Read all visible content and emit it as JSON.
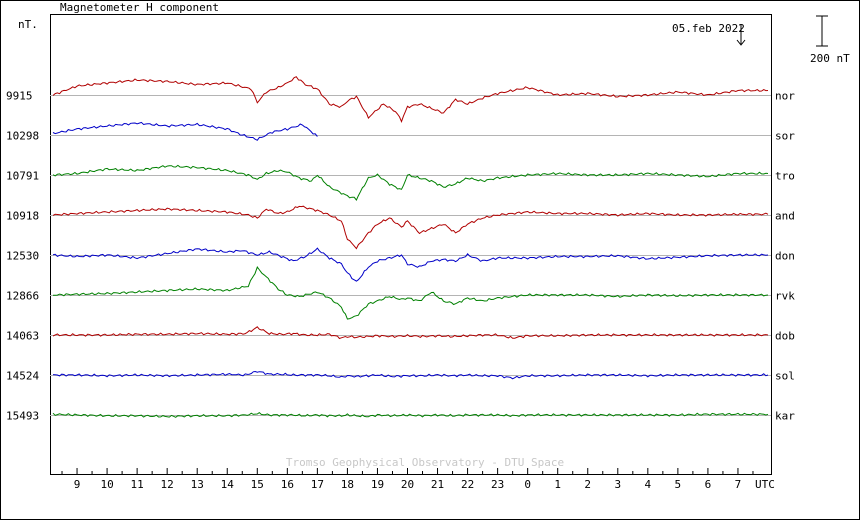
{
  "chart_data": {
    "type": "line",
    "title": "Magnetometer H component",
    "ylabel": "nT.",
    "date_label": "05.feb 2022",
    "scale_label": "200 nT",
    "xlabel": "UTC",
    "credit": "Tromso Geophysical Observatory - DTU Space",
    "x_ticks": [
      "9",
      "10",
      "11",
      "12",
      "13",
      "14",
      "15",
      "16",
      "17",
      "18",
      "19",
      "20",
      "21",
      "22",
      "23",
      "0",
      "1",
      "2",
      "3",
      "4",
      "5",
      "6",
      "7"
    ],
    "x_hours": [
      9,
      10,
      11,
      12,
      13,
      14,
      15,
      16,
      17,
      18,
      19,
      20,
      21,
      22,
      23,
      24,
      25,
      26,
      27,
      28,
      29,
      30,
      31
    ],
    "x_range_hours": [
      8.1,
      32.1
    ],
    "scale_bar_nT": 200,
    "baselines": [
      {
        "station": "nor",
        "value": "9915",
        "color": "#b00000"
      },
      {
        "station": "sor",
        "value": "10298",
        "color": "#0000c8"
      },
      {
        "station": "tro",
        "value": "10791",
        "color": "#008000"
      },
      {
        "station": "and",
        "value": "10918",
        "color": "#b00000"
      },
      {
        "station": "don",
        "value": "12530",
        "color": "#0000c8"
      },
      {
        "station": "rvk",
        "value": "12866",
        "color": "#008000"
      },
      {
        "station": "dob",
        "value": "14063",
        "color": "#b00000"
      },
      {
        "station": "sol",
        "value": "14524",
        "color": "#0000c8"
      },
      {
        "station": "kar",
        "value": "15493",
        "color": "#008000"
      }
    ],
    "series": [
      {
        "name": "nor",
        "color": "#b00000",
        "x": [
          8.2,
          9,
          10,
          11,
          12,
          13,
          14,
          14.8,
          15,
          15.3,
          15.7,
          16,
          16.3,
          16.6,
          17,
          17.4,
          17.8,
          18,
          18.3,
          18.7,
          19.2,
          19.6,
          19.8,
          20,
          20.4,
          20.8,
          21.2,
          21.6,
          22,
          22.5,
          23,
          24,
          25,
          26,
          27,
          28,
          29,
          30,
          31,
          32
        ],
        "y": [
          0,
          60,
          80,
          100,
          90,
          70,
          80,
          40,
          -50,
          20,
          50,
          80,
          120,
          70,
          40,
          -60,
          -80,
          -40,
          -10,
          -150,
          -60,
          -110,
          -170,
          -80,
          -60,
          -90,
          -120,
          -30,
          -60,
          -20,
          10,
          50,
          0,
          10,
          -10,
          0,
          20,
          0,
          30,
          30
        ]
      },
      {
        "name": "sor",
        "color": "#0000c8",
        "x": [
          8.2,
          9,
          10,
          11,
          12,
          13,
          14,
          14.5,
          15,
          15.5,
          16,
          16.5,
          17
        ],
        "y": [
          10,
          40,
          60,
          80,
          60,
          70,
          40,
          0,
          -30,
          20,
          40,
          70,
          -10
        ]
      },
      {
        "name": "tro",
        "color": "#008000",
        "x": [
          8.2,
          9,
          10,
          11,
          12,
          13,
          14,
          14.7,
          15,
          15.3,
          15.7,
          16,
          16.4,
          16.8,
          17,
          17.4,
          17.8,
          18,
          18.3,
          18.7,
          19,
          19.4,
          19.8,
          20,
          20.4,
          20.8,
          21.2,
          21.6,
          22,
          22.5,
          23,
          24,
          25,
          26,
          27,
          28,
          29,
          30,
          31,
          32
        ],
        "y": [
          0,
          10,
          40,
          30,
          60,
          50,
          30,
          0,
          -30,
          10,
          30,
          20,
          -20,
          -40,
          0,
          -80,
          -120,
          -140,
          -160,
          -20,
          0,
          -60,
          -100,
          0,
          -20,
          -40,
          -80,
          -60,
          -20,
          -40,
          -20,
          0,
          10,
          0,
          0,
          10,
          0,
          -10,
          10,
          10
        ]
      },
      {
        "name": "and",
        "color": "#b00000",
        "x": [
          8.2,
          9,
          10,
          11,
          12,
          13,
          14,
          14.7,
          15,
          15.3,
          15.7,
          16,
          16.4,
          16.8,
          17,
          17.4,
          17.8,
          18,
          18.3,
          18.7,
          19,
          19.4,
          19.8,
          20,
          20.4,
          20.8,
          21.2,
          21.6,
          22,
          22.5,
          23,
          24,
          25,
          26,
          27,
          28,
          29,
          30,
          31,
          32
        ],
        "y": [
          0,
          10,
          20,
          30,
          40,
          30,
          20,
          0,
          -20,
          40,
          10,
          20,
          60,
          40,
          30,
          0,
          -40,
          -160,
          -220,
          -120,
          -60,
          -20,
          -80,
          -40,
          -120,
          -90,
          -60,
          -120,
          -60,
          -20,
          0,
          20,
          10,
          10,
          0,
          10,
          0,
          0,
          5,
          5
        ]
      },
      {
        "name": "don",
        "color": "#0000c8",
        "x": [
          8.2,
          9,
          10,
          11,
          12,
          13,
          14,
          14.5,
          15,
          15.4,
          15.8,
          16.2,
          16.6,
          17,
          17.4,
          17.8,
          18,
          18.3,
          18.7,
          19,
          19.4,
          19.8,
          20,
          20.4,
          20.8,
          21.2,
          21.6,
          22,
          22.5,
          23,
          24,
          25,
          26,
          27,
          28,
          29,
          30,
          31,
          32
        ],
        "y": [
          0,
          -10,
          0,
          -20,
          10,
          40,
          20,
          30,
          0,
          20,
          -10,
          -40,
          -10,
          40,
          -20,
          -60,
          -120,
          -180,
          -80,
          -40,
          -20,
          0,
          -60,
          -80,
          -40,
          -30,
          -40,
          0,
          -40,
          -20,
          -20,
          -10,
          -10,
          -5,
          -25,
          -15,
          -5,
          0,
          0
        ]
      },
      {
        "name": "rvk",
        "color": "#008000",
        "x": [
          8.2,
          9,
          10,
          11,
          12,
          13,
          14,
          14.7,
          15,
          15.3,
          15.7,
          16,
          16.4,
          16.8,
          17,
          17.4,
          17.8,
          18,
          18.3,
          18.7,
          19,
          19.4,
          19.8,
          20,
          20.4,
          20.8,
          21.2,
          21.6,
          22,
          22.5,
          23,
          24,
          25,
          26,
          27,
          28,
          29,
          30,
          31,
          32
        ],
        "y": [
          0,
          5,
          10,
          20,
          30,
          40,
          30,
          60,
          180,
          120,
          40,
          0,
          -10,
          10,
          20,
          -20,
          -80,
          -160,
          -140,
          -60,
          -40,
          -10,
          -30,
          -20,
          -40,
          20,
          -40,
          -60,
          -20,
          -40,
          -20,
          0,
          0,
          0,
          -10,
          0,
          -5,
          0,
          0,
          0
        ]
      },
      {
        "name": "dob",
        "color": "#b00000",
        "x": [
          8.2,
          9,
          10,
          11,
          12,
          13,
          14,
          14.6,
          15,
          15.4,
          15.8,
          16.2,
          16.6,
          17,
          17.4,
          17.8,
          18,
          18.3,
          18.7,
          19,
          19.5,
          20,
          20.5,
          21,
          21.5,
          22,
          22.5,
          23,
          23.5,
          24,
          25,
          26,
          27,
          28,
          29,
          30,
          31,
          32
        ],
        "y": [
          0,
          0,
          0,
          5,
          5,
          10,
          5,
          10,
          50,
          10,
          5,
          10,
          0,
          0,
          5,
          -20,
          -10,
          -15,
          -10,
          -5,
          -10,
          -5,
          -10,
          -5,
          -10,
          -5,
          0,
          0,
          -20,
          -5,
          -5,
          0,
          0,
          0,
          0,
          0,
          0,
          0
        ]
      },
      {
        "name": "sol",
        "color": "#0000c8",
        "x": [
          8.2,
          9,
          10,
          11,
          12,
          13,
          14,
          14.6,
          15,
          15.4,
          15.8,
          16.2,
          16.6,
          17,
          17.4,
          17.8,
          18,
          18.3,
          18.7,
          19,
          19.5,
          20,
          20.5,
          21,
          21.5,
          22,
          22.5,
          23,
          23.5,
          24,
          25,
          26,
          27,
          28,
          29,
          30,
          31,
          32
        ],
        "y": [
          0,
          0,
          -5,
          0,
          -5,
          0,
          5,
          0,
          25,
          5,
          5,
          0,
          0,
          0,
          -5,
          -15,
          -5,
          -10,
          -5,
          0,
          -10,
          -5,
          -5,
          0,
          -5,
          0,
          -5,
          -5,
          -20,
          -5,
          -5,
          0,
          0,
          -5,
          0,
          0,
          0,
          0
        ]
      },
      {
        "name": "kar",
        "color": "#008000",
        "x": [
          8.2,
          9,
          10,
          11,
          12,
          13,
          14,
          14.6,
          15,
          15.4,
          15.8,
          16.2,
          16.6,
          17,
          17.4,
          17.8,
          18,
          18.3,
          18.7,
          19,
          19.5,
          20,
          20.5,
          21,
          21.5,
          22,
          22.5,
          23,
          23.5,
          24,
          25,
          26,
          27,
          28,
          29,
          30,
          31,
          32
        ],
        "y": [
          5,
          0,
          -5,
          -5,
          -10,
          -5,
          -5,
          0,
          10,
          0,
          0,
          0,
          -5,
          0,
          -5,
          -5,
          0,
          -5,
          -10,
          0,
          -5,
          0,
          -5,
          0,
          -5,
          0,
          0,
          0,
          -5,
          0,
          0,
          0,
          0,
          0,
          0,
          5,
          5,
          5
        ]
      }
    ]
  }
}
